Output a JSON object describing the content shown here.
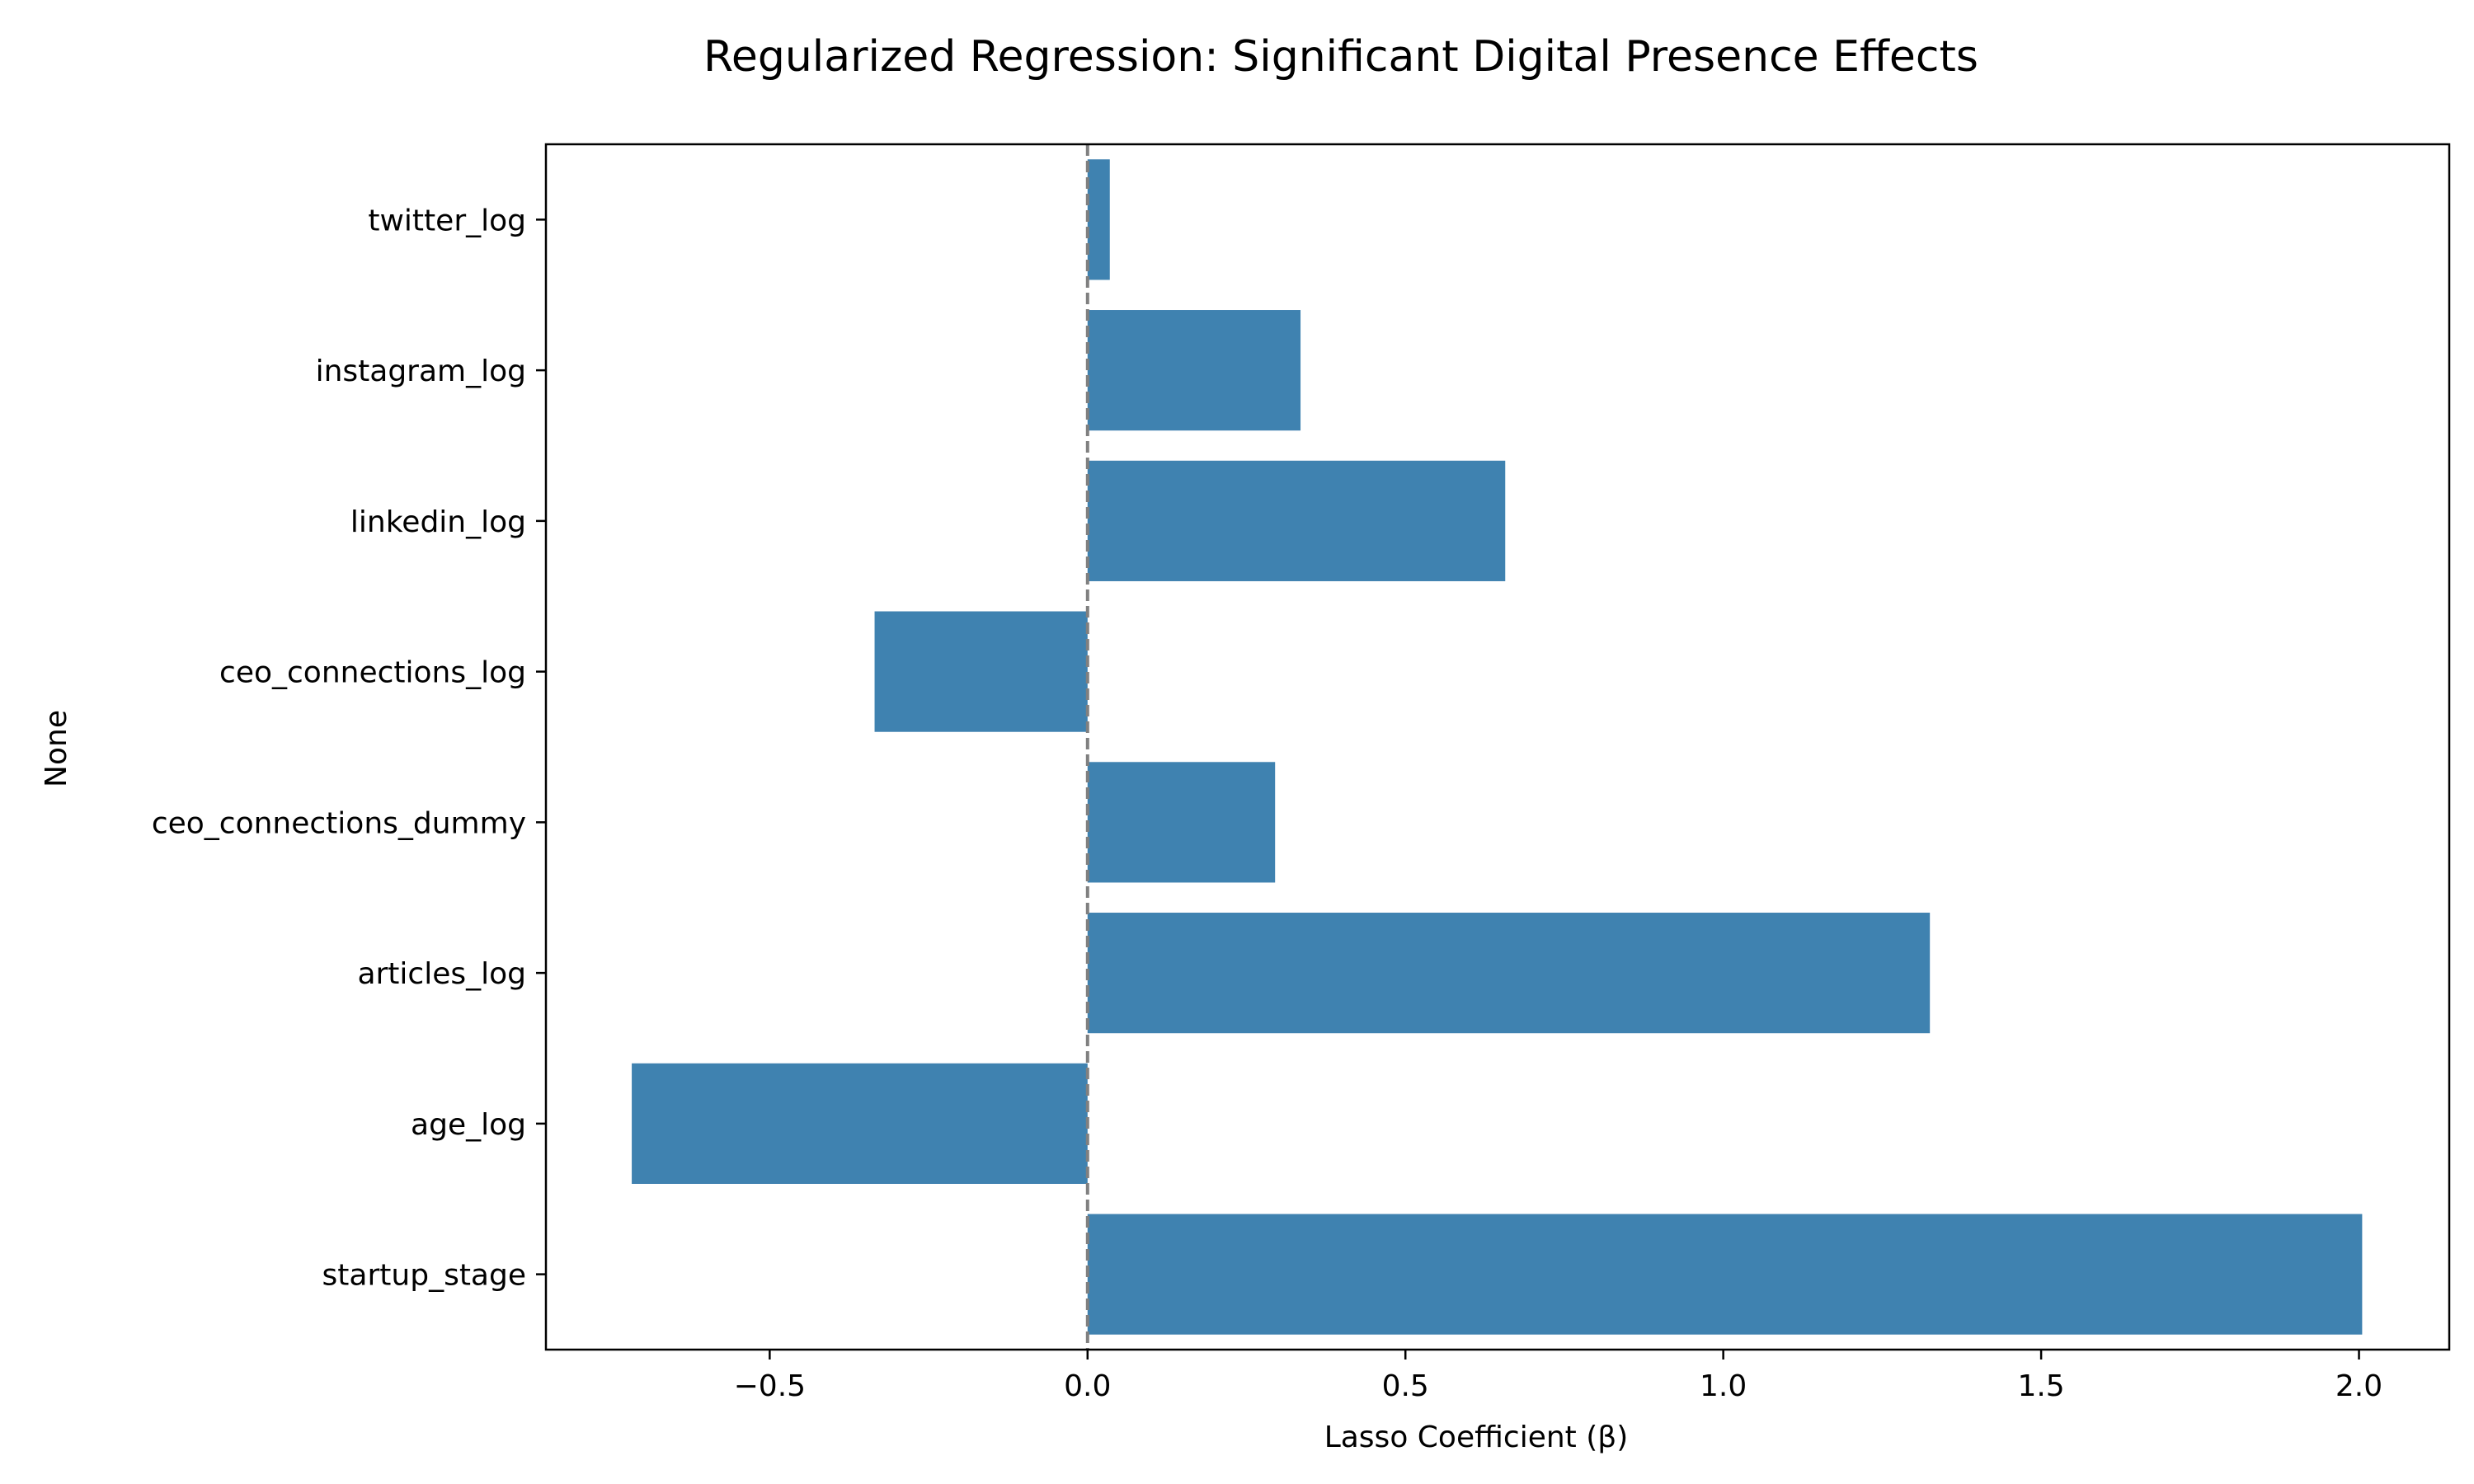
{
  "chart_data": {
    "type": "bar",
    "orientation": "horizontal",
    "title": "Regularized Regression: Significant Digital Presence Effects",
    "xlabel": "Lasso Coefficient (β)",
    "ylabel": "None",
    "categories": [
      "twitter_log",
      "instagram_log",
      "linkedin_log",
      "ceo_connections_log",
      "ceo_connections_dummy",
      "articles_log",
      "age_log",
      "startup_stage"
    ],
    "values": [
      0.035,
      0.335,
      0.657,
      -0.335,
      0.295,
      1.325,
      -0.717,
      2.005
    ],
    "xlim": [
      -0.852,
      2.142
    ],
    "xticks": [
      -0.5,
      0.0,
      0.5,
      1.0,
      1.5,
      2.0
    ],
    "xtick_labels": [
      "−0.5",
      "0.0",
      "0.5",
      "1.0",
      "1.5",
      "2.0"
    ],
    "reference_line": {
      "x": 0,
      "style": "dashed",
      "color": "#808080"
    },
    "bar_color": "#3f82b0",
    "grid": false,
    "legend": "none"
  }
}
